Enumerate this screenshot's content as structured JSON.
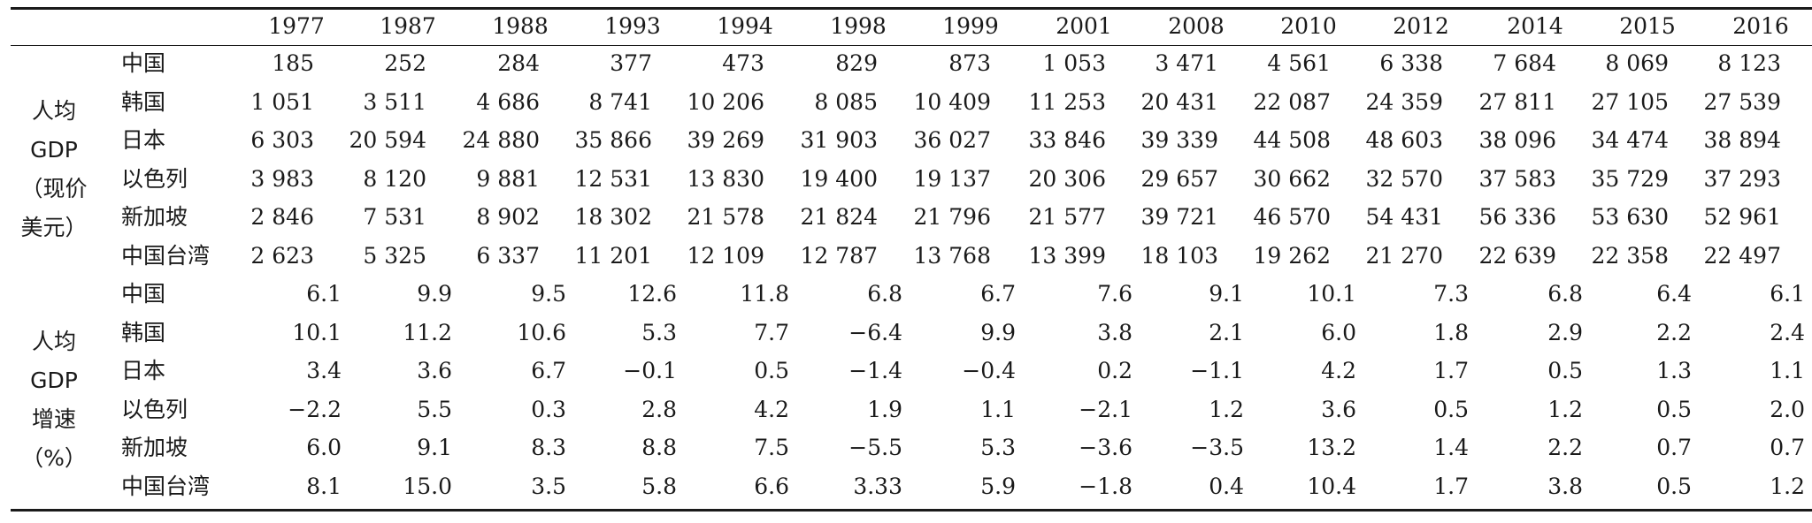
{
  "years": [
    "1977",
    "1987",
    "1988",
    "1993",
    "1994",
    "1998",
    "1999",
    "2001",
    "2008",
    "2010",
    "2012",
    "2014",
    "2015",
    "2016"
  ],
  "groups": [
    {
      "label_lines": [
        "人均",
        "GDP",
        "（现价",
        "美元）"
      ],
      "rows": [
        {
          "name": "中国",
          "values": [
            "185",
            "252",
            "284",
            "377",
            "473",
            "829",
            "873",
            "1 053",
            "3 471",
            "4 561",
            "6 338",
            "7 684",
            "8 069",
            "8 123"
          ]
        },
        {
          "name": "韩国",
          "values": [
            "1 051",
            "3 511",
            "4 686",
            "8 741",
            "10 206",
            "8 085",
            "10 409",
            "11 253",
            "20 431",
            "22 087",
            "24 359",
            "27 811",
            "27 105",
            "27 539"
          ]
        },
        {
          "name": "日本",
          "values": [
            "6 303",
            "20 594",
            "24 880",
            "35 866",
            "39 269",
            "31 903",
            "36 027",
            "33 846",
            "39 339",
            "44 508",
            "48 603",
            "38 096",
            "34 474",
            "38 894"
          ]
        },
        {
          "name": "以色列",
          "values": [
            "3 983",
            "8 120",
            "9 881",
            "12 531",
            "13 830",
            "19 400",
            "19 137",
            "20 306",
            "29 657",
            "30 662",
            "32 570",
            "37 583",
            "35 729",
            "37 293"
          ]
        },
        {
          "name": "新加坡",
          "values": [
            "2 846",
            "7 531",
            "8 902",
            "18 302",
            "21 578",
            "21 824",
            "21 796",
            "21 577",
            "39 721",
            "46 570",
            "54 431",
            "56 336",
            "53 630",
            "52 961"
          ]
        },
        {
          "name": "中国台湾",
          "values": [
            "2 623",
            "5 325",
            "6 337",
            "11 201",
            "12 109",
            "12 787",
            "13 768",
            "13 399",
            "18 103",
            "19 262",
            "21 270",
            "22 639",
            "22 358",
            "22 497"
          ]
        }
      ]
    },
    {
      "label_lines": [
        "人均",
        "GDP",
        "增速",
        "（%）"
      ],
      "rows": [
        {
          "name": "中国",
          "values": [
            "6.1",
            "9.9",
            "9.5",
            "12.6",
            "11.8",
            "6.8",
            "6.7",
            "7.6",
            "9.1",
            "10.1",
            "7.3",
            "6.8",
            "6.4",
            "6.1"
          ]
        },
        {
          "name": "韩国",
          "values": [
            "10.1",
            "11.2",
            "10.6",
            "5.3",
            "7.7",
            "−6.4",
            "9.9",
            "3.8",
            "2.1",
            "6.0",
            "1.8",
            "2.9",
            "2.2",
            "2.4"
          ]
        },
        {
          "name": "日本",
          "values": [
            "3.4",
            "3.6",
            "6.7",
            "−0.1",
            "0.5",
            "−1.4",
            "−0.4",
            "0.2",
            "−1.1",
            "4.2",
            "1.7",
            "0.5",
            "1.3",
            "1.1"
          ]
        },
        {
          "name": "以色列",
          "values": [
            "−2.2",
            "5.5",
            "0.3",
            "2.8",
            "4.2",
            "1.9",
            "1.1",
            "−2.1",
            "1.2",
            "3.6",
            "0.5",
            "1.2",
            "0.5",
            "2.0"
          ]
        },
        {
          "name": "新加坡",
          "values": [
            "6.0",
            "9.1",
            "8.3",
            "8.8",
            "7.5",
            "−5.5",
            "5.3",
            "−3.6",
            "−3.5",
            "13.2",
            "1.4",
            "2.2",
            "0.7",
            "0.7"
          ]
        },
        {
          "name": "中国台湾",
          "values": [
            "8.1",
            "15.0",
            "3.5",
            "5.8",
            "6.6",
            "3.33",
            "5.9",
            "−1.8",
            "0.4",
            "10.4",
            "1.7",
            "3.8",
            "0.5",
            "1.2"
          ]
        }
      ]
    }
  ]
}
